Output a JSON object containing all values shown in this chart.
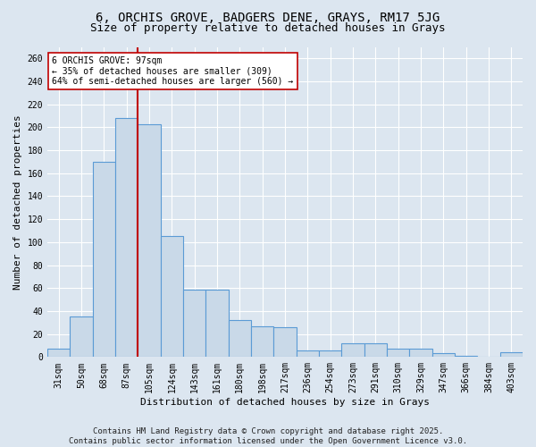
{
  "title1": "6, ORCHIS GROVE, BADGERS DENE, GRAYS, RM17 5JG",
  "title2": "Size of property relative to detached houses in Grays",
  "xlabel": "Distribution of detached houses by size in Grays",
  "ylabel": "Number of detached properties",
  "categories": [
    "31sqm",
    "50sqm",
    "68sqm",
    "87sqm",
    "105sqm",
    "124sqm",
    "143sqm",
    "161sqm",
    "180sqm",
    "198sqm",
    "217sqm",
    "236sqm",
    "254sqm",
    "273sqm",
    "291sqm",
    "310sqm",
    "329sqm",
    "347sqm",
    "366sqm",
    "384sqm",
    "403sqm"
  ],
  "values": [
    7,
    35,
    170,
    208,
    203,
    105,
    59,
    59,
    32,
    27,
    26,
    6,
    6,
    12,
    12,
    7,
    7,
    3,
    1,
    0,
    4
  ],
  "bar_color": "#c9d9e8",
  "bar_edge_color": "#5b9bd5",
  "vline_x": 3.5,
  "vline_color": "#c00000",
  "annotation_text": "6 ORCHIS GROVE: 97sqm\n← 35% of detached houses are smaller (309)\n64% of semi-detached houses are larger (560) →",
  "annotation_box_color": "#ffffff",
  "annotation_box_edge": "#c00000",
  "ylim": [
    0,
    270
  ],
  "yticks": [
    0,
    20,
    40,
    60,
    80,
    100,
    120,
    140,
    160,
    180,
    200,
    220,
    240,
    260
  ],
  "bg_color": "#dce6f0",
  "grid_color": "#ffffff",
  "footer": "Contains HM Land Registry data © Crown copyright and database right 2025.\nContains public sector information licensed under the Open Government Licence v3.0.",
  "title_fontsize": 10,
  "title2_fontsize": 9,
  "axis_fontsize": 8,
  "tick_fontsize": 7,
  "footer_fontsize": 6.5
}
